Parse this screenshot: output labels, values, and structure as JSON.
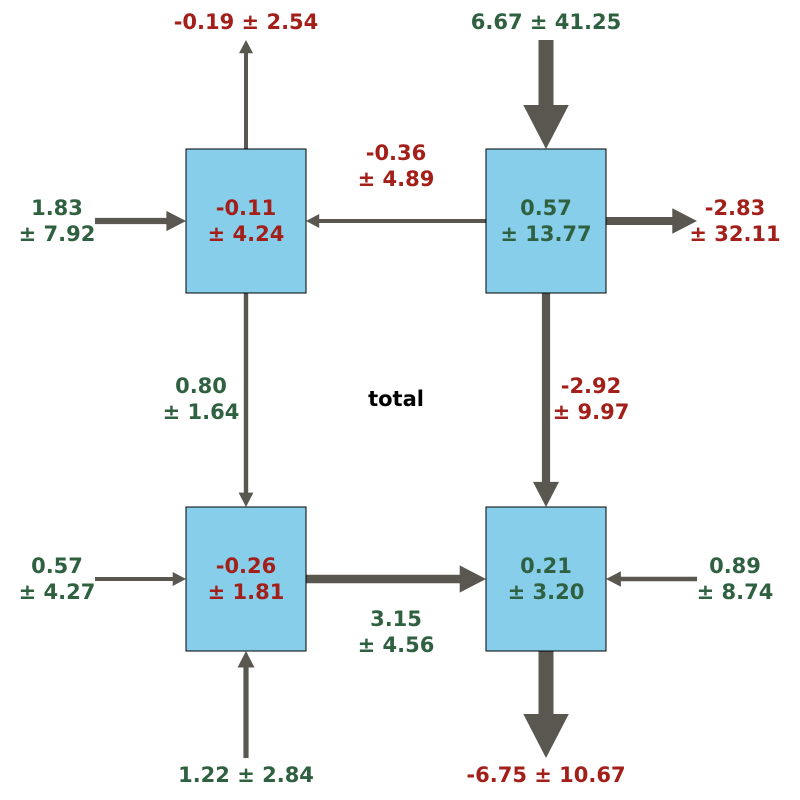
{
  "center_label": "total",
  "colors": {
    "positive": "#2f6040",
    "negative": "#a31f1a",
    "arrow": "#5a5750",
    "box_fill": "#87ceeb",
    "box_stroke": "#000000"
  },
  "boxes": {
    "top_left": {
      "value": "-0.11",
      "error": "± 4.24",
      "sign": "negative"
    },
    "top_right": {
      "value": "0.57",
      "error": "± 13.77",
      "sign": "positive"
    },
    "bottom_left": {
      "value": "-0.26",
      "error": "± 1.81",
      "sign": "negative"
    },
    "bottom_right": {
      "value": "0.21",
      "error": "± 3.20",
      "sign": "positive"
    }
  },
  "flows": {
    "top_left_up_out": {
      "text": "-0.19 ± 2.54",
      "sign": "negative",
      "magnitude": 0.19
    },
    "top_right_down_in": {
      "text": "6.67 ± 41.25",
      "sign": "positive",
      "magnitude": 6.67
    },
    "left_into_top_left": {
      "value": "1.83",
      "error": "± 7.92",
      "sign": "positive",
      "magnitude": 1.83
    },
    "top_right_to_top_left": {
      "value": "-0.36",
      "error": "± 4.89",
      "sign": "negative",
      "magnitude": 0.36
    },
    "top_right_right_out": {
      "value": "-2.83",
      "error": "± 32.11",
      "sign": "negative",
      "magnitude": 2.83
    },
    "top_left_to_bottom_left": {
      "value": "0.80",
      "error": "± 1.64",
      "sign": "positive",
      "magnitude": 0.8
    },
    "top_right_to_bottom_right": {
      "value": "-2.92",
      "error": "± 9.97",
      "sign": "negative",
      "magnitude": 2.92
    },
    "left_into_bottom_left": {
      "value": "0.57",
      "error": "± 4.27",
      "sign": "positive",
      "magnitude": 0.57
    },
    "bottom_left_to_bottom_right": {
      "value": "3.15",
      "error": "± 4.56",
      "sign": "positive",
      "magnitude": 3.15
    },
    "right_into_bottom_right": {
      "value": "0.89",
      "error": "± 8.74",
      "sign": "positive",
      "magnitude": 0.89
    },
    "bottom_up_into_bottom_left": {
      "text": "1.22 ± 2.84",
      "sign": "positive",
      "magnitude": 1.22
    },
    "bottom_right_down_out": {
      "text": "-6.75 ± 10.67",
      "sign": "negative",
      "magnitude": 6.75
    }
  }
}
